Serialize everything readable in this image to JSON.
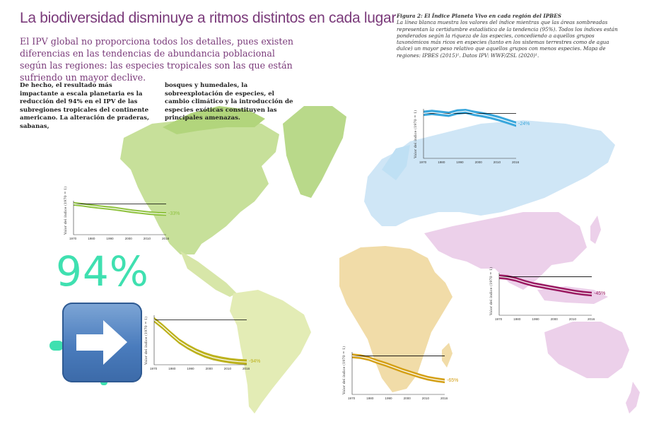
{
  "header": {
    "title": "La biodiversidad disminuye a ritmos distintos en cada lugar",
    "subtitle": "El IPV global no proporciona todos los detalles, pues existen diferencias en las tendencias de abundancia poblacional según las regiones: las especies tropicales son las que están sufriendo un mayor declive."
  },
  "body": {
    "col1": "De hecho, el resultado más impactante a escala planetaria es la reducción del 94% en el IPV de las subregiones tropicales del continente americano. La alteración de praderas, sabanas,",
    "col2": "bosques y humedales, la sobreexplotación de especies, el cambio climático y la introducción de especies exóticas constituyen las principales amenazas."
  },
  "caption": {
    "figure_label": "Figura 2: El Índice Planeta Vivo en cada región del IPBES",
    "text": "La línea blanca muestra los valores del índice mientras que las áreas sombreadas representan la certidumbre estadística de la tendencia (95%). Todos los índices están ponderados según la riqueza de las especies, concediendo a aquellos grupos taxonómicos más ricos en especies (tanto en los sistemas terrestres como de agua dulce) un mayor peso relativo que aquellos grupos con menos especies. Mapa de regiones: IPBES (2015)¹. Datos IPV: WWF/ZSL (2020)¹."
  },
  "overlay": {
    "big_number": "94%",
    "arrow_icon": "right-arrow-icon"
  },
  "colors": {
    "north_america": "#8fc23f",
    "latin_america": "#bdb21e",
    "europe_central_asia": "#3aa7dc",
    "africa": "#d4a017",
    "asia_pacific": "#9b1b63",
    "title_purple": "#7a3a7a",
    "accent_green": "#3fe0b0"
  },
  "charts": [
    {
      "id": "north-america",
      "ylabel": "Valor del índice (1970 = 1)",
      "pct": "-33%",
      "color": "#8fc23f",
      "ticks": [
        "1970",
        "1980",
        "1990",
        "2000",
        "2010",
        "2016"
      ],
      "values": [
        1.0,
        0.97,
        0.93,
        0.9,
        0.87,
        0.84,
        0.8,
        0.76,
        0.73,
        0.7,
        0.68,
        0.67
      ]
    },
    {
      "id": "europe-central-asia",
      "ylabel": "Valor del índice (1970 = 1)",
      "pct": "-24%",
      "color": "#3aa7dc",
      "ticks": [
        "1970",
        "1980",
        "1990",
        "2000",
        "2010",
        "2016"
      ],
      "values": [
        1.0,
        1.02,
        1.0,
        0.98,
        1.03,
        1.05,
        1.0,
        0.97,
        0.93,
        0.88,
        0.82,
        0.76
      ]
    },
    {
      "id": "asia-pacific",
      "ylabel": "Valor del índice (1970 = 1)",
      "pct": "-45%",
      "color": "#9b1b63",
      "ticks": [
        "1970",
        "1980",
        "1990",
        "2000",
        "2010",
        "2016"
      ],
      "values": [
        1.0,
        0.98,
        0.93,
        0.86,
        0.8,
        0.76,
        0.72,
        0.68,
        0.64,
        0.6,
        0.57,
        0.55
      ]
    },
    {
      "id": "latin-america",
      "ylabel": "Valor del índice (1970 = 1)",
      "pct": "-94%",
      "color": "#bdb21e",
      "ticks": [
        "1970",
        "1980",
        "1990",
        "2000",
        "2010",
        "2016"
      ],
      "values": [
        1.0,
        0.85,
        0.68,
        0.52,
        0.4,
        0.3,
        0.22,
        0.16,
        0.12,
        0.09,
        0.07,
        0.06
      ]
    },
    {
      "id": "africa",
      "ylabel": "Valor del índice (1970 = 1)",
      "pct": "-65%",
      "color": "#d4a017",
      "ticks": [
        "1970",
        "1980",
        "1990",
        "2000",
        "2010",
        "2016"
      ],
      "values": [
        1.0,
        0.98,
        0.93,
        0.85,
        0.78,
        0.7,
        0.62,
        0.55,
        0.48,
        0.42,
        0.38,
        0.35
      ]
    }
  ]
}
